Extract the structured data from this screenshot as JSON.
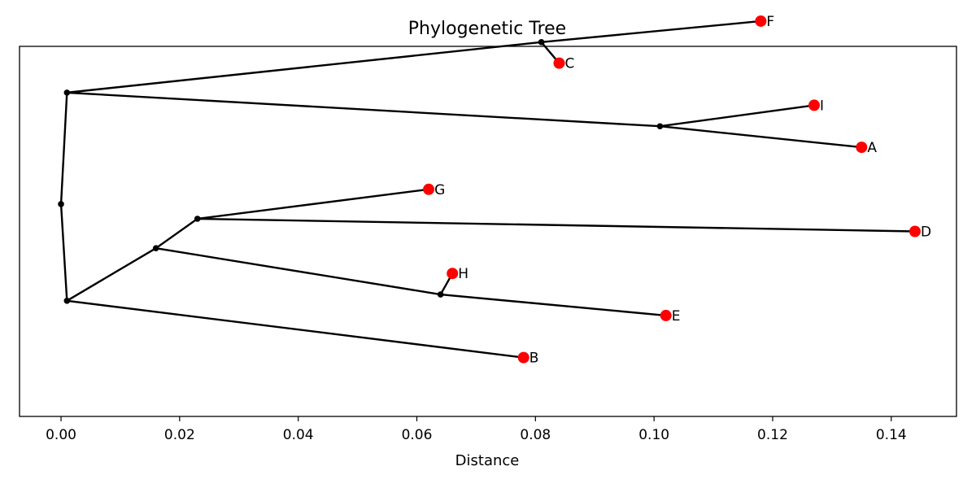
{
  "chart_data": {
    "type": "tree",
    "title": "Phylogenetic Tree",
    "xlabel": "Distance",
    "xlim": [
      -0.007,
      0.151
    ],
    "ylim": [
      -1.4,
      7.4
    ],
    "x_ticks": [
      0.0,
      0.02,
      0.04,
      0.06,
      0.08,
      0.1,
      0.12,
      0.14
    ],
    "x_tick_labels": [
      "0.00",
      "0.02",
      "0.04",
      "0.06",
      "0.08",
      "0.10",
      "0.12",
      "0.14"
    ],
    "grid": false,
    "branch_color": "#000000",
    "leaf_color": "#ff0000",
    "internal_color": "#000000",
    "nodes": [
      {
        "id": "root",
        "x": 0.0,
        "y": 3.65,
        "leaf": false
      },
      {
        "id": "n1",
        "x": 0.001,
        "y": 6.3,
        "leaf": false
      },
      {
        "id": "n2",
        "x": 0.001,
        "y": 1.35,
        "leaf": false
      },
      {
        "id": "n3",
        "x": 0.081,
        "y": 7.5,
        "leaf": false
      },
      {
        "id": "n4",
        "x": 0.101,
        "y": 5.5,
        "leaf": false
      },
      {
        "id": "n5",
        "x": 0.016,
        "y": 2.6,
        "leaf": false
      },
      {
        "id": "n6",
        "x": 0.023,
        "y": 3.3,
        "leaf": false
      },
      {
        "id": "n7",
        "x": 0.064,
        "y": 1.5,
        "leaf": false
      },
      {
        "id": "F",
        "label": "F",
        "x": 0.118,
        "y": 8.0,
        "leaf": true
      },
      {
        "id": "C",
        "label": "C",
        "x": 0.084,
        "y": 7.0,
        "leaf": true
      },
      {
        "id": "I",
        "label": "I",
        "x": 0.127,
        "y": 6.0,
        "leaf": true
      },
      {
        "id": "A",
        "label": "A",
        "x": 0.135,
        "y": 5.0,
        "leaf": true
      },
      {
        "id": "G",
        "label": "G",
        "x": 0.062,
        "y": 4.0,
        "leaf": true
      },
      {
        "id": "D",
        "label": "D",
        "x": 0.144,
        "y": 3.0,
        "leaf": true
      },
      {
        "id": "H",
        "label": "H",
        "x": 0.066,
        "y": 2.0,
        "leaf": true
      },
      {
        "id": "E",
        "label": "E",
        "x": 0.102,
        "y": 1.0,
        "leaf": true
      },
      {
        "id": "B",
        "label": "B",
        "x": 0.078,
        "y": 0.0,
        "leaf": true
      }
    ],
    "edges": [
      [
        "root",
        "n1"
      ],
      [
        "root",
        "n2"
      ],
      [
        "n1",
        "n3"
      ],
      [
        "n1",
        "n4"
      ],
      [
        "n3",
        "F"
      ],
      [
        "n3",
        "C"
      ],
      [
        "n4",
        "I"
      ],
      [
        "n4",
        "A"
      ],
      [
        "n2",
        "n5"
      ],
      [
        "n2",
        "B"
      ],
      [
        "n5",
        "n6"
      ],
      [
        "n5",
        "n7"
      ],
      [
        "n6",
        "G"
      ],
      [
        "n6",
        "D"
      ],
      [
        "n7",
        "H"
      ],
      [
        "n7",
        "E"
      ]
    ]
  }
}
